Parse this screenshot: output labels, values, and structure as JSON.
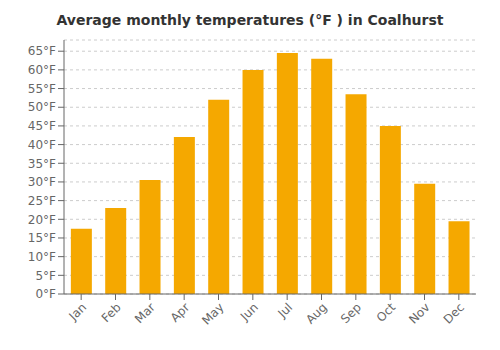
{
  "chart_data": {
    "type": "bar",
    "title": "Average monthly temperatures (°F ) in Coalhurst",
    "categories": [
      "Jan",
      "Feb",
      "Mar",
      "Apr",
      "May",
      "Jun",
      "Jul",
      "Aug",
      "Sep",
      "Oct",
      "Nov",
      "Dec"
    ],
    "values": [
      17.5,
      23,
      30.5,
      42,
      52,
      60,
      64.5,
      63,
      53.5,
      45,
      29.5,
      19.5
    ],
    "color": "#F5A800",
    "ylim": [
      0,
      68
    ],
    "yticks": [
      {
        "value": 0,
        "label": "0°F"
      },
      {
        "value": 5,
        "label": "5°F"
      },
      {
        "value": 10,
        "label": "10°F"
      },
      {
        "value": 15,
        "label": "15°F"
      },
      {
        "value": 20,
        "label": "20°F"
      },
      {
        "value": 25,
        "label": "25°F"
      },
      {
        "value": 30,
        "label": "30°F"
      },
      {
        "value": 35,
        "label": "35°F"
      },
      {
        "value": 40,
        "label": "40°F"
      },
      {
        "value": 45,
        "label": "45°F"
      },
      {
        "value": 50,
        "label": "50°F"
      },
      {
        "value": 55,
        "label": "55°F"
      },
      {
        "value": 60,
        "label": "60°F"
      },
      {
        "value": 65,
        "label": "65°F"
      }
    ],
    "grid": true
  }
}
